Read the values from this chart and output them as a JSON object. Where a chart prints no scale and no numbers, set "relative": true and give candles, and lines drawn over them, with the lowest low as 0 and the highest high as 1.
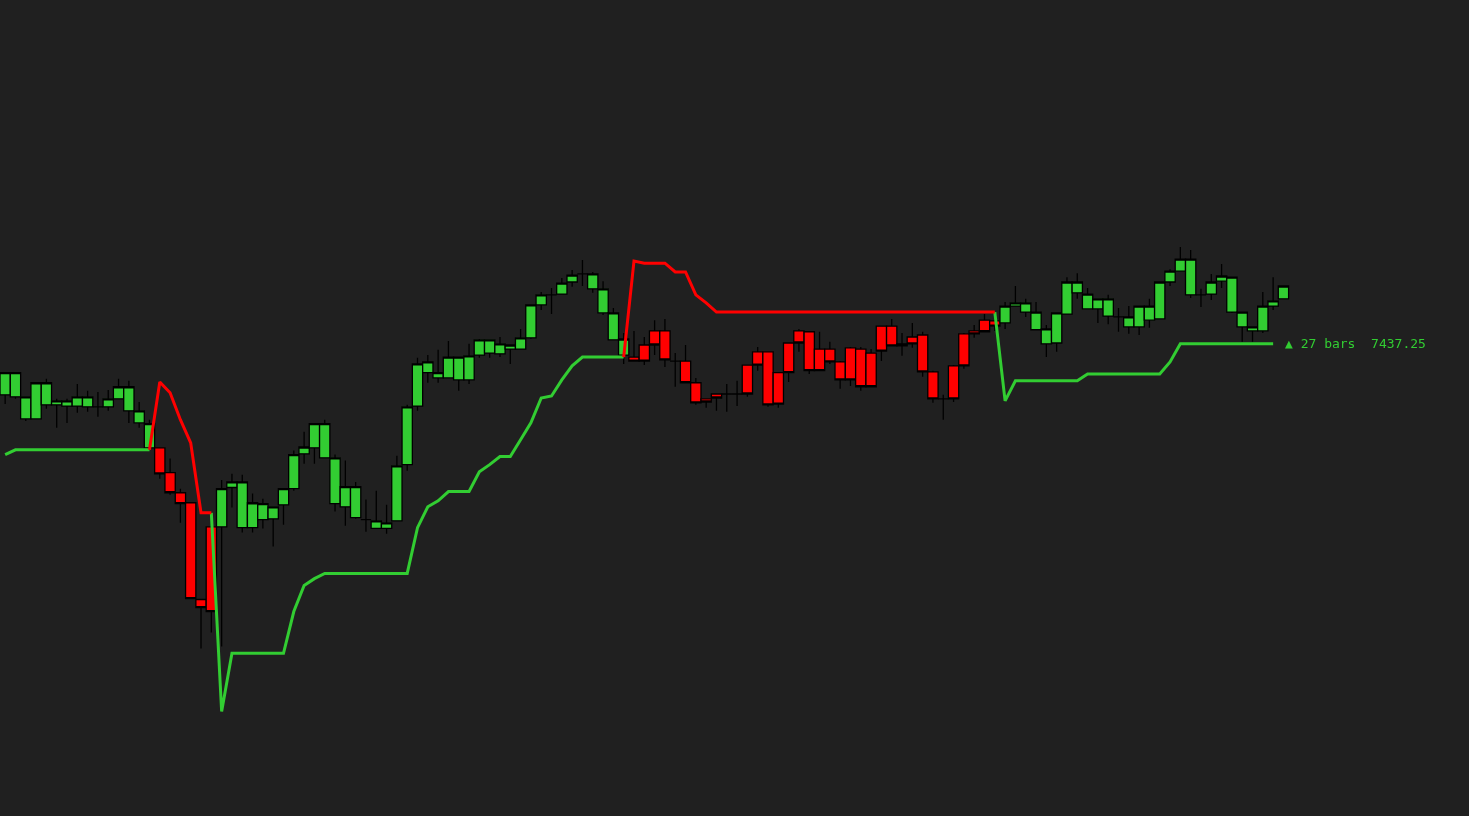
{
  "chart_data": {
    "type": "candlestick",
    "relative": true,
    "tick_labels": false,
    "categories": [
      null,
      null,
      null,
      null,
      null,
      null,
      null,
      null,
      null,
      null,
      null,
      null,
      null,
      null,
      null,
      null,
      null,
      null,
      null,
      null,
      null,
      null,
      null,
      null,
      null,
      null,
      null,
      null,
      null,
      null,
      null,
      null,
      null,
      null,
      null,
      null,
      null,
      null,
      null,
      null,
      null,
      null,
      null,
      null,
      null,
      null,
      null,
      null,
      null,
      null,
      null,
      null,
      null,
      null,
      null,
      null,
      null,
      null,
      null,
      null,
      null,
      null,
      null,
      null,
      null,
      null,
      null,
      null,
      null,
      null,
      null,
      null,
      null,
      null,
      null,
      null,
      null,
      null,
      null,
      null,
      null,
      null,
      null,
      null,
      null,
      null,
      null,
      null,
      null,
      null,
      null,
      null,
      null,
      null,
      null,
      null,
      null,
      null,
      null,
      null,
      null,
      null,
      null,
      null,
      null,
      null,
      null,
      null,
      null,
      null,
      null,
      null,
      null,
      null,
      null,
      null,
      null,
      null,
      null,
      null,
      null,
      null,
      null,
      null,
      null
    ],
    "ohlc": [
      [
        0.632,
        0.687,
        0.609,
        0.687
      ],
      [
        0.627,
        0.689,
        0.622,
        0.687
      ],
      [
        0.572,
        0.627,
        0.567,
        0.627
      ],
      [
        0.572,
        0.662,
        0.572,
        0.662
      ],
      [
        0.607,
        0.672,
        0.597,
        0.662
      ],
      [
        0.607,
        0.622,
        0.55,
        0.617
      ],
      [
        0.604,
        0.622,
        0.562,
        0.617
      ],
      [
        0.604,
        0.659,
        0.587,
        0.627
      ],
      [
        0.602,
        0.642,
        0.59,
        0.627
      ],
      [
        0.602,
        0.639,
        0.577,
        0.602
      ],
      [
        0.602,
        0.644,
        0.592,
        0.622
      ],
      [
        0.622,
        0.672,
        0.622,
        0.652
      ],
      [
        0.592,
        0.667,
        0.562,
        0.652
      ],
      [
        0.562,
        0.614,
        0.55,
        0.592
      ],
      [
        0.5,
        0.57,
        0.5,
        0.56
      ],
      [
        0.5,
        0.5,
        0.423,
        0.435
      ],
      [
        0.438,
        0.473,
        0.383,
        0.388
      ],
      [
        0.388,
        0.398,
        0.313,
        0.361
      ],
      [
        0.363,
        0.363,
        0.124,
        0.124
      ],
      [
        0.122,
        0.122,
        0,
        0.102
      ],
      [
        0.303,
        0.303,
        0.04,
        0.092
      ],
      [
        0.303,
        0.42,
        0.005,
        0.398
      ],
      [
        0.401,
        0.435,
        0.351,
        0.415
      ],
      [
        0.301,
        0.433,
        0.289,
        0.415
      ],
      [
        0.301,
        0.386,
        0.289,
        0.363
      ],
      [
        0.321,
        0.373,
        0.299,
        0.361
      ],
      [
        0.323,
        0.353,
        0.254,
        0.353
      ],
      [
        0.358,
        0.398,
        0.308,
        0.398
      ],
      [
        0.398,
        0.493,
        0.393,
        0.483
      ],
      [
        0.485,
        0.54,
        0.46,
        0.502
      ],
      [
        0.5,
        0.562,
        0.46,
        0.56
      ],
      [
        0.475,
        0.57,
        0.475,
        0.56
      ],
      [
        0.361,
        0.483,
        0.341,
        0.475
      ],
      [
        0.353,
        0.468,
        0.306,
        0.403
      ],
      [
        0.326,
        0.415,
        0.323,
        0.403
      ],
      [
        0.321,
        0.371,
        0.291,
        0.321
      ],
      [
        0.299,
        0.393,
        0.299,
        0.318
      ],
      [
        0.299,
        0.358,
        0.286,
        0.313
      ],
      [
        0.318,
        0.48,
        0.318,
        0.455
      ],
      [
        0.458,
        0.607,
        0.443,
        0.602
      ],
      [
        0.604,
        0.724,
        0.592,
        0.709
      ],
      [
        0.687,
        0.731,
        0.662,
        0.714
      ],
      [
        0.674,
        0.744,
        0.662,
        0.687
      ],
      [
        0.674,
        0.766,
        0.674,
        0.726
      ],
      [
        0.669,
        0.726,
        0.642,
        0.726
      ],
      [
        0.669,
        0.759,
        0.659,
        0.729
      ],
      [
        0.731,
        0.771,
        0.724,
        0.769
      ],
      [
        0.736,
        0.769,
        0.724,
        0.769
      ],
      [
        0.734,
        0.776,
        0.726,
        0.759
      ],
      [
        0.746,
        0.756,
        0.709,
        0.756
      ],
      [
        0.746,
        0.796,
        0.746,
        0.774
      ],
      [
        0.774,
        0.856,
        0.771,
        0.856
      ],
      [
        0.856,
        0.888,
        0.843,
        0.881
      ],
      [
        0.881,
        0.898,
        0.833,
        0.881
      ],
      [
        0.883,
        0.923,
        0.883,
        0.91
      ],
      [
        0.913,
        0.943,
        0.901,
        0.93
      ],
      [
        0.933,
        0.968,
        0.903,
        0.933
      ],
      [
        0.896,
        0.938,
        0.886,
        0.933
      ],
      [
        0.836,
        0.915,
        0.831,
        0.896
      ],
      [
        0.769,
        0.848,
        0.769,
        0.836
      ],
      [
        0.731,
        0.786,
        0.709,
        0.771
      ],
      [
        0.726,
        0.791,
        0.716,
        0.716
      ],
      [
        0.756,
        0.776,
        0.706,
        0.716
      ],
      [
        0.791,
        0.818,
        0.731,
        0.756
      ],
      [
        0.791,
        0.821,
        0.701,
        0.719
      ],
      [
        0.716,
        0.736,
        0.652,
        0.716
      ],
      [
        0.716,
        0.756,
        0.662,
        0.662
      ],
      [
        0.662,
        0.674,
        0.607,
        0.612
      ],
      [
        0.622,
        0.622,
        0.6,
        0.614
      ],
      [
        0.634,
        0.634,
        0.592,
        0.624
      ],
      [
        0.634,
        0.659,
        0.59,
        0.634
      ],
      [
        0.634,
        0.667,
        0.604,
        0.634
      ],
      [
        0.706,
        0.706,
        0.627,
        0.634
      ],
      [
        0.739,
        0.751,
        0.692,
        0.706
      ],
      [
        0.739,
        0.739,
        0.602,
        0.607
      ],
      [
        0.687,
        0.689,
        0.6,
        0.609
      ],
      [
        0.761,
        0.761,
        0.664,
        0.687
      ],
      [
        0.791,
        0.796,
        0.739,
        0.761
      ],
      [
        0.789,
        0.791,
        0.684,
        0.692
      ],
      [
        0.746,
        0.789,
        0.692,
        0.692
      ],
      [
        0.746,
        0.764,
        0.709,
        0.714
      ],
      [
        0.714,
        0.716,
        0.647,
        0.669
      ],
      [
        0.749,
        0.751,
        0.654,
        0.669
      ],
      [
        0.746,
        0.751,
        0.642,
        0.652
      ],
      [
        0.736,
        0.746,
        0.652,
        0.652
      ],
      [
        0.803,
        0.803,
        0.716,
        0.741
      ],
      [
        0.803,
        0.821,
        0.754,
        0.754
      ],
      [
        0.759,
        0.786,
        0.729,
        0.754
      ],
      [
        0.776,
        0.811,
        0.749,
        0.759
      ],
      [
        0.781,
        0.789,
        0.677,
        0.689
      ],
      [
        0.689,
        0.692,
        0.612,
        0.622
      ],
      [
        0.622,
        0.632,
        0.57,
        0.622
      ],
      [
        0.704,
        0.706,
        0.614,
        0.622
      ],
      [
        0.784,
        0.786,
        0.697,
        0.704
      ],
      [
        0.791,
        0.806,
        0.774,
        0.784
      ],
      [
        0.818,
        0.833,
        0.789,
        0.789
      ],
      [
        0.816,
        0.816,
        0.791,
        0.803
      ],
      [
        0.811,
        0.863,
        0.796,
        0.853
      ],
      [
        0.853,
        0.903,
        0.853,
        0.861
      ],
      [
        0.838,
        0.871,
        0.826,
        0.861
      ],
      [
        0.794,
        0.863,
        0.794,
        0.838
      ],
      [
        0.759,
        0.806,
        0.726,
        0.796
      ],
      [
        0.761,
        0.836,
        0.739,
        0.836
      ],
      [
        0.833,
        0.925,
        0.833,
        0.913
      ],
      [
        0.886,
        0.935,
        0.871,
        0.913
      ],
      [
        0.846,
        0.898,
        0.846,
        0.883
      ],
      [
        0.846,
        0.871,
        0.811,
        0.871
      ],
      [
        0.828,
        0.881,
        0.808,
        0.871
      ],
      [
        0.826,
        0.848,
        0.789,
        0.826
      ],
      [
        0.801,
        0.853,
        0.784,
        0.826
      ],
      [
        0.801,
        0.853,
        0.781,
        0.853
      ],
      [
        0.818,
        0.871,
        0.799,
        0.853
      ],
      [
        0.821,
        0.913,
        0.821,
        0.913
      ],
      [
        0.913,
        0.945,
        0.903,
        0.94
      ],
      [
        0.94,
        1,
        0.94,
        0.97
      ],
      [
        0.881,
        0.993,
        0.873,
        0.97
      ],
      [
        0.881,
        0.896,
        0.851,
        0.881
      ],
      [
        0.883,
        0.933,
        0.868,
        0.913
      ],
      [
        0.915,
        0.958,
        0.898,
        0.928
      ],
      [
        0.838,
        0.925,
        0.836,
        0.925
      ],
      [
        0.801,
        0.838,
        0.764,
        0.838
      ],
      [
        0.791,
        0.801,
        0.764,
        0.801
      ],
      [
        0.791,
        0.888,
        0.786,
        0.853
      ],
      [
        0.853,
        0.925,
        0.843,
        0.866
      ],
      [
        0.871,
        0.903,
        0.871,
        0.903
      ]
    ],
    "colors": [
      "#32cd32",
      "#32cd32",
      "#32cd32",
      "#32cd32",
      "#32cd32",
      "#32cd32",
      "#32cd32",
      "#32cd32",
      "#32cd32",
      "#000000",
      "#32cd32",
      "#32cd32",
      "#32cd32",
      "#32cd32",
      "#32cd32",
      "#ff0000",
      "#ff0000",
      "#ff0000",
      "#ff0000",
      "#ff0000",
      "#ff0000",
      "#32cd32",
      "#32cd32",
      "#32cd32",
      "#32cd32",
      "#32cd32",
      "#32cd32",
      "#32cd32",
      "#32cd32",
      "#32cd32",
      "#32cd32",
      "#32cd32",
      "#32cd32",
      "#32cd32",
      "#32cd32",
      "#000000",
      "#32cd32",
      "#32cd32",
      "#32cd32",
      "#32cd32",
      "#32cd32",
      "#32cd32",
      "#32cd32",
      "#32cd32",
      "#32cd32",
      "#32cd32",
      "#32cd32",
      "#32cd32",
      "#32cd32",
      "#32cd32",
      "#32cd32",
      "#32cd32",
      "#32cd32",
      "#000000",
      "#32cd32",
      "#32cd32",
      "#000000",
      "#32cd32",
      "#32cd32",
      "#32cd32",
      "#32cd32",
      "#ff0000",
      "#ff0000",
      "#ff0000",
      "#ff0000",
      "#000000",
      "#ff0000",
      "#ff0000",
      "#ff0000",
      "#ff0000",
      "#000000",
      "#000000",
      "#ff0000",
      "#ff0000",
      "#ff0000",
      "#ff0000",
      "#ff0000",
      "#ff0000",
      "#ff0000",
      "#ff0000",
      "#ff0000",
      "#ff0000",
      "#ff0000",
      "#ff0000",
      "#ff0000",
      "#ff0000",
      "#ff0000",
      "#000000",
      "#ff0000",
      "#ff0000",
      "#ff0000",
      "#000000",
      "#ff0000",
      "#ff0000",
      "#ff0000",
      "#ff0000",
      "#ff0000",
      "#32cd32",
      "#32cd32",
      "#32cd32",
      "#32cd32",
      "#32cd32",
      "#32cd32",
      "#32cd32",
      "#32cd32",
      "#32cd32",
      "#32cd32",
      "#32cd32",
      "#000000",
      "#32cd32",
      "#32cd32",
      "#32cd32",
      "#32cd32",
      "#32cd32",
      "#32cd32",
      "#32cd32",
      "#000000",
      "#32cd32",
      "#32cd32",
      "#32cd32",
      "#32cd32",
      "#32cd32",
      "#32cd32",
      "#32cd32",
      "#32cd32"
    ],
    "series": [
      {
        "type": "line",
        "color": "#32cd32",
        "values": [
          0.483,
          0.495,
          0.495,
          0.495,
          0.495,
          0.495,
          0.495,
          0.495,
          0.495,
          0.495,
          0.495,
          0.495,
          0.495,
          0.495,
          0.495,
          null,
          null,
          null,
          null,
          null,
          0.338,
          -0.157,
          -0.012,
          -0.012,
          -0.012,
          -0.012,
          -0.012,
          -0.012,
          0.092,
          0.157,
          0.174,
          0.187,
          0.187,
          0.187,
          0.187,
          0.187,
          0.187,
          0.187,
          0.187,
          0.187,
          0.301,
          0.353,
          0.368,
          0.391,
          0.391,
          0.391,
          0.44,
          0.458,
          0.478,
          0.478,
          0.52,
          0.562,
          0.624,
          0.629,
          0.669,
          0.704,
          0.726,
          0.726,
          0.726,
          0.726,
          0.726,
          null,
          null,
          null,
          null,
          null,
          null,
          null,
          null,
          null,
          null,
          null,
          null,
          null,
          null,
          null,
          null,
          null,
          null,
          null,
          null,
          null,
          null,
          null,
          null,
          null,
          null,
          null,
          null,
          null,
          null,
          null,
          null,
          null,
          null,
          null,
          0.838,
          0.617,
          0.667,
          0.667,
          0.667,
          0.667,
          0.667,
          0.667,
          0.667,
          0.684,
          0.684,
          0.684,
          0.684,
          0.684,
          0.684,
          0.684,
          0.684,
          0.714,
          0.759,
          0.759,
          0.759,
          0.759,
          0.759,
          0.759,
          0.759,
          0.759,
          0.759,
          0.759,
          null
        ]
      },
      {
        "type": "line",
        "color": "#ff0000",
        "values": [
          null,
          null,
          null,
          null,
          null,
          null,
          null,
          null,
          null,
          null,
          null,
          null,
          null,
          null,
          0.495,
          0.664,
          0.637,
          0.57,
          0.512,
          0.338,
          0.338,
          null,
          null,
          null,
          null,
          null,
          null,
          null,
          null,
          null,
          null,
          null,
          null,
          null,
          null,
          null,
          null,
          null,
          null,
          null,
          null,
          null,
          null,
          null,
          null,
          null,
          null,
          null,
          null,
          null,
          null,
          null,
          null,
          null,
          null,
          null,
          null,
          null,
          null,
          null,
          0.726,
          0.965,
          0.96,
          0.96,
          0.96,
          0.938,
          0.938,
          0.881,
          0.861,
          0.838,
          0.838,
          0.838,
          0.838,
          0.838,
          0.838,
          0.838,
          0.838,
          0.838,
          0.838,
          0.838,
          0.838,
          0.838,
          0.838,
          0.838,
          0.838,
          0.838,
          0.838,
          0.838,
          0.838,
          0.838,
          0.838,
          0.838,
          0.838,
          0.838,
          0.838,
          0.838,
          0.838,
          null,
          null,
          null,
          null,
          null,
          null,
          null,
          null,
          null,
          null,
          null,
          null,
          null,
          null,
          null,
          null,
          null,
          null,
          null,
          null,
          null,
          null,
          null,
          null,
          null,
          null,
          null,
          null
        ]
      }
    ],
    "annotations": [
      "▲ 27 bars  7437.25"
    ]
  }
}
